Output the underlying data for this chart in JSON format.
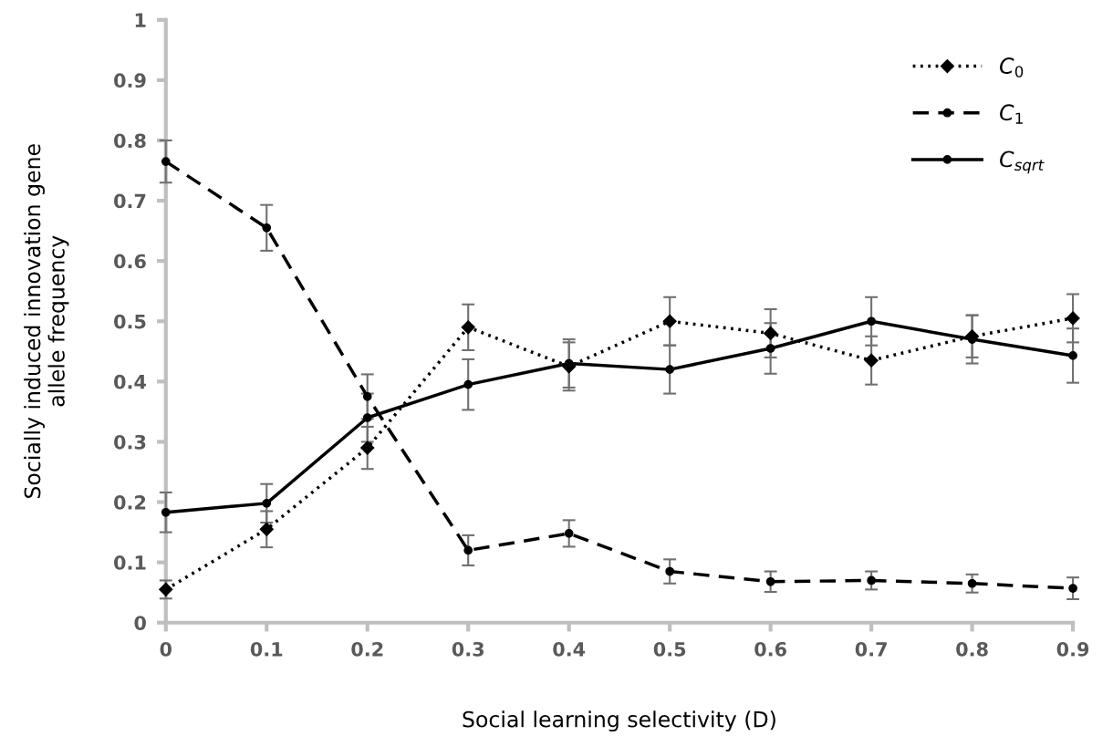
{
  "chart_data": {
    "type": "line",
    "xlabel": "Social learning selectivity (D)",
    "ylabel": "Socially induced innovation gene\nallele frequency",
    "x": [
      0,
      0.1,
      0.2,
      0.3,
      0.4,
      0.5,
      0.6,
      0.7,
      0.8,
      0.9
    ],
    "series": [
      {
        "name": "C$_{0}$",
        "color": "#000000",
        "marker": "diamond",
        "line_style": "dotted",
        "values": [
          0.055,
          0.155,
          0.29,
          0.49,
          0.425,
          0.5,
          0.48,
          0.435,
          0.475,
          0.505
        ],
        "errors": [
          0.015,
          0.03,
          0.035,
          0.038,
          0.04,
          0.04,
          0.04,
          0.04,
          0.035,
          0.04
        ]
      },
      {
        "name": "C$_{1}$",
        "color": "#000000",
        "marker": "circle",
        "line_style": "dashed",
        "values": [
          0.765,
          0.655,
          0.375,
          0.12,
          0.148,
          0.085,
          0.068,
          0.07,
          0.065,
          0.057
        ],
        "errors": [
          0.035,
          0.038,
          0.037,
          0.025,
          0.022,
          0.02,
          0.017,
          0.015,
          0.015,
          0.018
        ]
      },
      {
        "name": "C$_{sqrt}$",
        "color": "#000000",
        "marker": "circle",
        "line_style": "solid",
        "values": [
          0.183,
          0.198,
          0.34,
          0.395,
          0.43,
          0.42,
          0.455,
          0.5,
          0.47,
          0.443
        ],
        "errors": [
          0.033,
          0.032,
          0.04,
          0.042,
          0.04,
          0.04,
          0.042,
          0.04,
          0.04,
          0.045
        ]
      }
    ],
    "xlim": [
      0,
      0.9
    ],
    "xticks": [
      0,
      0.1,
      0.2,
      0.3,
      0.4,
      0.5,
      0.6,
      0.7,
      0.8,
      0.9
    ],
    "ylim": [
      0,
      1
    ],
    "yticks": [
      0,
      0.1,
      0.2,
      0.3,
      0.4,
      0.5,
      0.6,
      0.7,
      0.8,
      0.9,
      1
    ],
    "grid": false,
    "legend": "top right"
  }
}
